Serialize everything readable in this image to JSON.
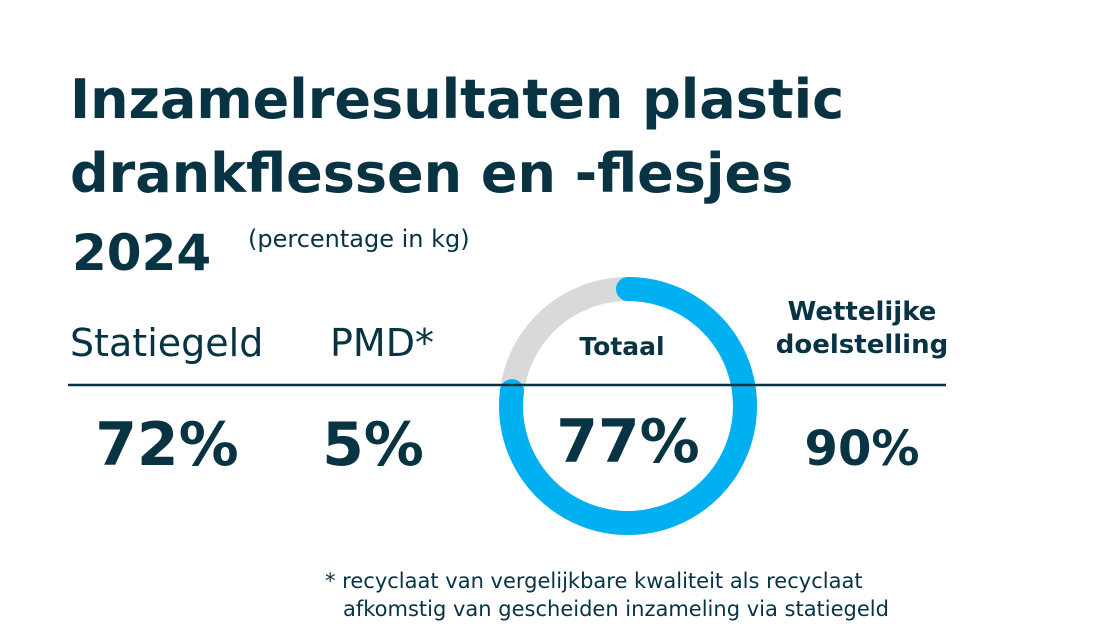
{
  "header": {
    "title_lines": [
      "Inzamelresultaten plastic",
      "drankflessen en -flesjes"
    ],
    "year": "2024",
    "unit_note": "(percentage in kg)"
  },
  "columns": [
    {
      "label": "Statiegeld",
      "value_label": "72%"
    },
    {
      "label": "PMD*",
      "value_label": "5%"
    },
    {
      "label": "Totaal",
      "value": 77,
      "value_label": "77%",
      "ring_color": "#00b0f0",
      "track_color": "#d9d9d9"
    },
    {
      "label_lines": [
        "Wettelijke",
        "doelstelling"
      ],
      "value_label": "90%"
    }
  ],
  "footnote": [
    "* recyclaat van vergelijkbare kwaliteit als recyclaat",
    "afkomstig van gescheiden inzameling via statiegeld"
  ]
}
